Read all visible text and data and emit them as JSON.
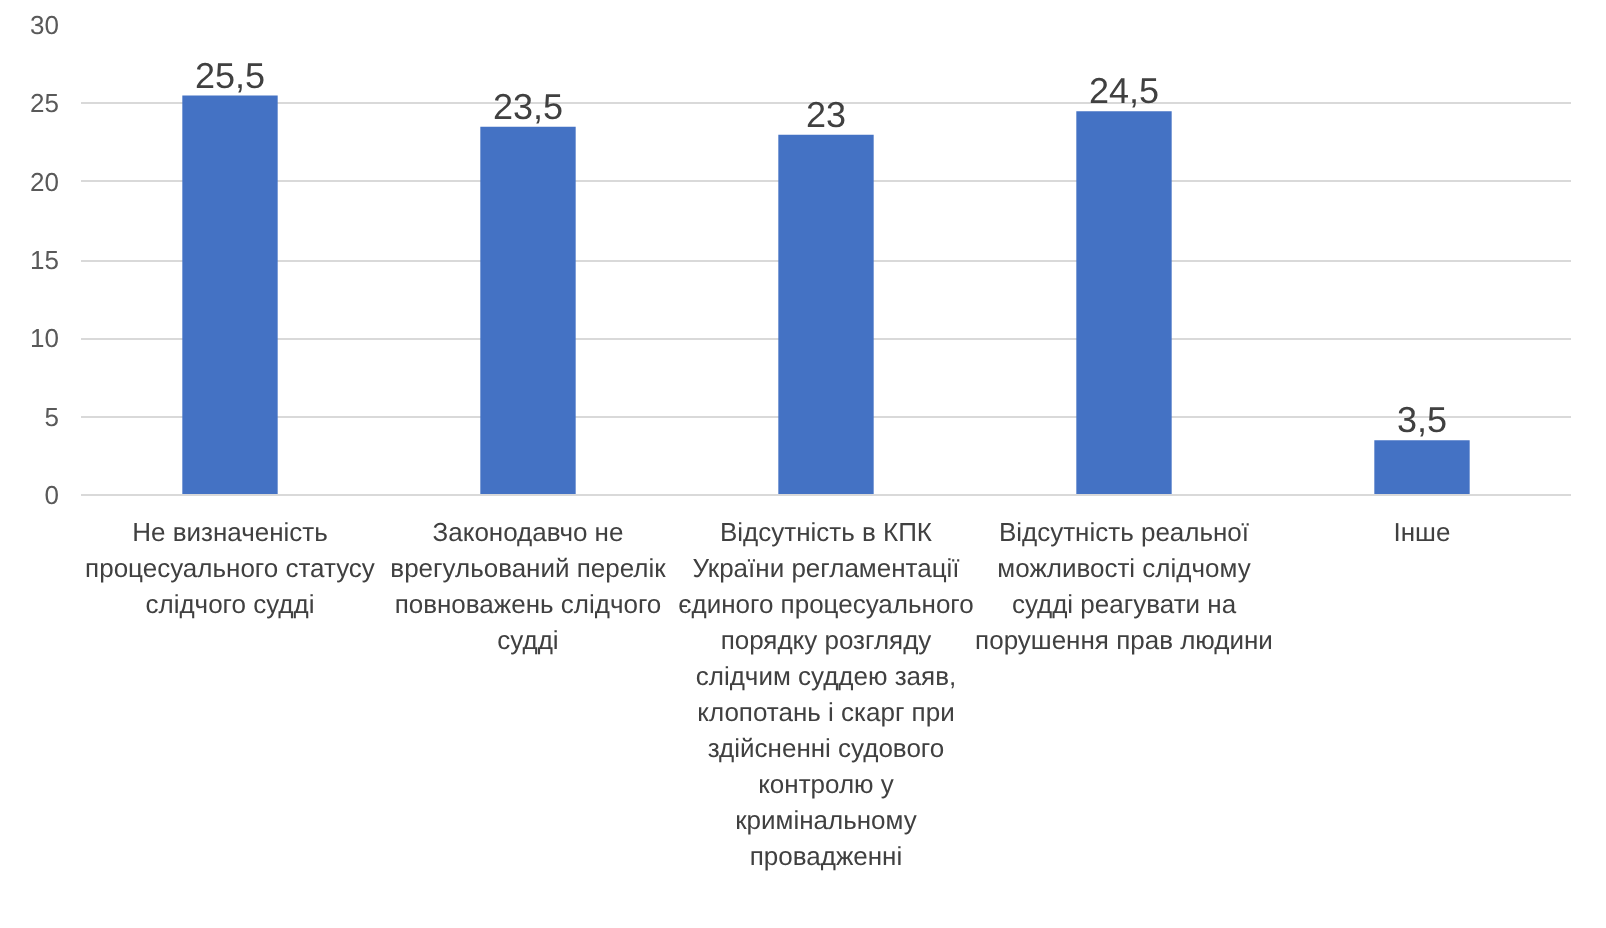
{
  "chart_data": {
    "type": "bar",
    "categories": [
      "Не визначеність процесуального статусу слідчого судді",
      "Законодавчо не врегульований перелік повноважень слідчого судді",
      "Відсутність в КПК України регламентації єдиного процесуального порядку розгляду слідчим суддею заяв, клопотань і скарг при здійсненні судового контролю у кримінальному провадженні",
      "Відсутність реальної можливості слідчому судді реагувати на порушення прав людини",
      "Інше"
    ],
    "values": [
      25.5,
      23.5,
      23,
      24.5,
      3.5
    ],
    "value_labels": [
      "25,5",
      "23,5",
      "23",
      "24,5",
      "3,5"
    ],
    "color": "#4472c4",
    "ylim": [
      0,
      30
    ],
    "yticks": [
      0,
      5,
      10,
      15,
      20,
      25,
      30
    ],
    "grid": "y"
  }
}
